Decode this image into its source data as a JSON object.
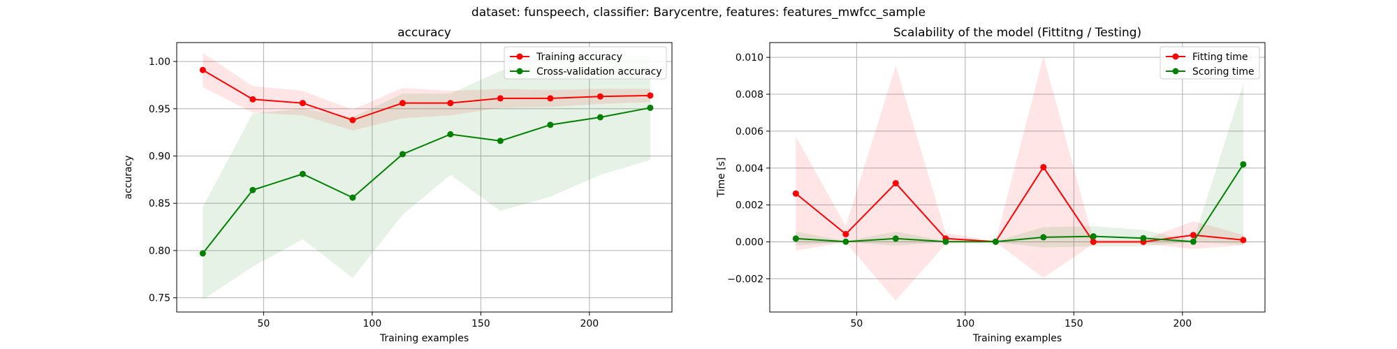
{
  "suptitle": "dataset: funspeech, classifier: Barycentre, features: features_mwfcc_sample",
  "colors": {
    "train": "#ff0000",
    "cv": "#008000",
    "grid": "#b0b0b0"
  },
  "chart_data": [
    {
      "type": "line",
      "title": "accuracy",
      "xlabel": "Training examples",
      "ylabel": "accuracy",
      "xlim": [
        10,
        238
      ],
      "ylim": [
        0.735,
        1.02
      ],
      "xticks": [
        50,
        100,
        150,
        200
      ],
      "yticks": [
        0.75,
        0.8,
        0.85,
        0.9,
        0.95,
        1.0
      ],
      "ytick_labels": [
        "0.75",
        "0.80",
        "0.85",
        "0.90",
        "0.95",
        "1.00"
      ],
      "grid": true,
      "legend_position": "top-right",
      "x": [
        22,
        45,
        68,
        91,
        114,
        136,
        159,
        182,
        205,
        228
      ],
      "series": [
        {
          "name": "Training accuracy",
          "color": "#ff0000",
          "values": [
            0.991,
            0.96,
            0.956,
            0.938,
            0.956,
            0.956,
            0.961,
            0.961,
            0.963,
            0.964
          ],
          "band_low": [
            0.973,
            0.946,
            0.943,
            0.927,
            0.94,
            0.943,
            0.951,
            0.952,
            0.955,
            0.957
          ],
          "band_high": [
            1.009,
            0.974,
            0.969,
            0.949,
            0.972,
            0.969,
            0.971,
            0.97,
            0.971,
            0.971
          ]
        },
        {
          "name": "Cross-validation accuracy",
          "color": "#008000",
          "values": [
            0.797,
            0.864,
            0.881,
            0.856,
            0.902,
            0.923,
            0.916,
            0.933,
            0.941,
            0.951
          ],
          "band_low": [
            0.748,
            0.783,
            0.812,
            0.771,
            0.838,
            0.88,
            0.842,
            0.857,
            0.88,
            0.896
          ],
          "band_high": [
            0.846,
            0.945,
            0.95,
            0.941,
            0.966,
            0.966,
            0.99,
            1.009,
            1.002,
            1.006
          ]
        }
      ]
    },
    {
      "type": "line",
      "title": "Scalability of the model (Fittitng / Testing)",
      "xlabel": "Training examples",
      "ylabel": "Time [s]",
      "xlim": [
        10,
        238
      ],
      "ylim": [
        -0.0038,
        0.0108
      ],
      "xticks": [
        50,
        100,
        150,
        200
      ],
      "yticks": [
        -0.002,
        0.0,
        0.002,
        0.004,
        0.006,
        0.008,
        0.01
      ],
      "ytick_labels": [
        "−0.002",
        "0.000",
        "0.002",
        "0.004",
        "0.006",
        "0.008",
        "0.010"
      ],
      "grid": true,
      "legend_position": "top-right",
      "x": [
        22,
        45,
        68,
        91,
        114,
        136,
        159,
        182,
        205,
        228
      ],
      "series": [
        {
          "name": "Fitting time",
          "color": "#ff0000",
          "values": [
            0.00262,
            0.00042,
            0.00318,
            0.00018,
            1e-05,
            0.00405,
            0.0,
            0.0,
            0.00037,
            0.0001
          ],
          "band_low": [
            -0.00047,
            -2e-05,
            -0.00318,
            -0.00012,
            -1e-05,
            -0.00195,
            -0.0001,
            -0.0001,
            -0.00038,
            -0.00018
          ],
          "band_high": [
            0.00571,
            0.00086,
            0.00954,
            0.00048,
            3e-05,
            0.01005,
            0.0001,
            0.0001,
            0.00112,
            0.00038
          ]
        },
        {
          "name": "Scoring time",
          "color": "#008000",
          "values": [
            0.00018,
            1e-05,
            0.00018,
            1e-05,
            1e-05,
            0.00025,
            0.0003,
            0.0002,
            1e-05,
            0.0042
          ],
          "band_low": [
            -0.0002,
            -2e-05,
            -0.0002,
            -2e-05,
            -2e-05,
            -0.0003,
            -0.00025,
            -0.00025,
            -2e-05,
            -0.00015
          ],
          "band_high": [
            0.00056,
            4e-05,
            0.00056,
            4e-05,
            4e-05,
            0.0008,
            0.00085,
            0.00065,
            4e-05,
            0.00855
          ]
        }
      ]
    }
  ]
}
